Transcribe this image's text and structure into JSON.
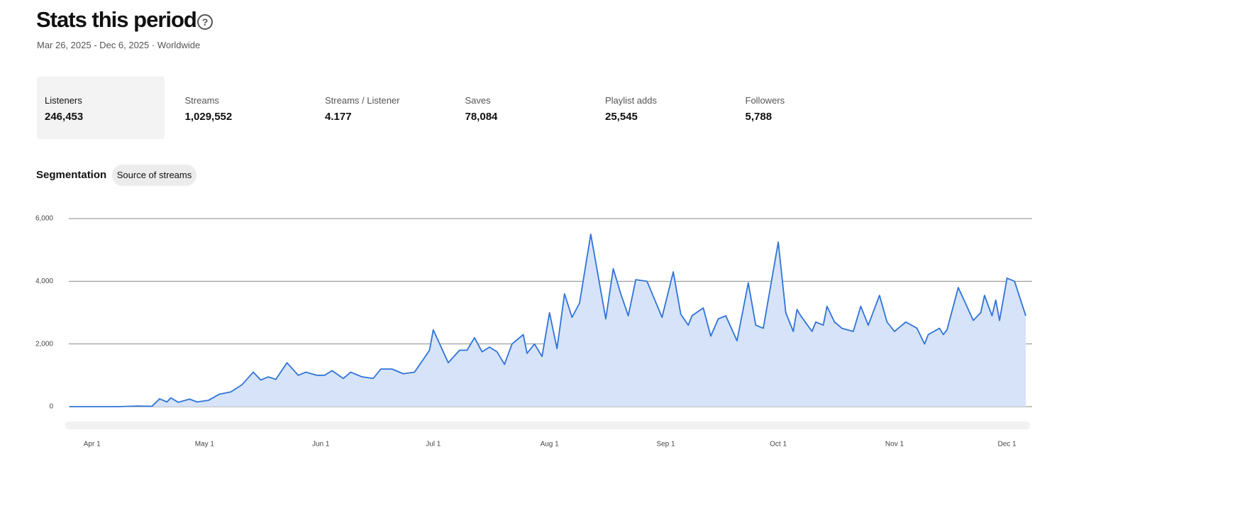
{
  "header": {
    "title": "Stats this period",
    "subtitle": "Mar 26, 2025 - Dec 6, 2025 · Worldwide"
  },
  "stats": [
    {
      "label": "Listeners",
      "value": "246,453"
    },
    {
      "label": "Streams",
      "value": "1,029,552"
    },
    {
      "label": "Streams / Listener",
      "value": "4.177"
    },
    {
      "label": "Saves",
      "value": "78,084"
    },
    {
      "label": "Playlist adds",
      "value": "25,545"
    },
    {
      "label": "Followers",
      "value": "5,788"
    }
  ],
  "segmentation": {
    "label": "Segmentation",
    "option": "Source of streams"
  },
  "chart_data": {
    "type": "area",
    "color": "#2f74d8",
    "fill": "#d6e3f8",
    "grid": true,
    "x": [
      "Mar 26",
      "Apr 1",
      "Apr 8",
      "Apr 13",
      "Apr 17",
      "Apr 19",
      "Apr 21",
      "Apr 22",
      "Apr 24",
      "Apr 27",
      "Apr 29",
      "May 2",
      "May 5",
      "May 8",
      "May 11",
      "May 14",
      "May 16",
      "May 18",
      "May 20",
      "May 23",
      "May 26",
      "May 28",
      "May 31",
      "Jun 2",
      "Jun 4",
      "Jun 7",
      "Jun 9",
      "Jun 12",
      "Jun 15",
      "Jun 17",
      "Jun 20",
      "Jun 23",
      "Jun 26",
      "Jun 28",
      "Jun 30",
      "Jul 1",
      "Jul 5",
      "Jul 8",
      "Jul 10",
      "Jul 12",
      "Jul 14",
      "Jul 16",
      "Jul 18",
      "Jul 20",
      "Jul 22",
      "Jul 25",
      "Jul 26",
      "Jul 28",
      "Jul 30",
      "Aug 1",
      "Aug 3",
      "Aug 5",
      "Aug 7",
      "Aug 9",
      "Aug 12",
      "Aug 16",
      "Aug 18",
      "Aug 20",
      "Aug 22",
      "Aug 24",
      "Aug 27",
      "Aug 31",
      "Sep 3",
      "Sep 5",
      "Sep 7",
      "Sep 8",
      "Sep 11",
      "Sep 13",
      "Sep 15",
      "Sep 17",
      "Sep 20",
      "Sep 23",
      "Sep 25",
      "Sep 27",
      "Oct 1",
      "Oct 3",
      "Oct 5",
      "Oct 6",
      "Oct 7",
      "Oct 10",
      "Oct 11",
      "Oct 13",
      "Oct 14",
      "Oct 16",
      "Oct 18",
      "Oct 21",
      "Oct 23",
      "Oct 25",
      "Oct 28",
      "Oct 30",
      "Nov 1",
      "Nov 4",
      "Nov 7",
      "Nov 9",
      "Nov 10",
      "Nov 13",
      "Nov 14",
      "Nov 15",
      "Nov 18",
      "Nov 22",
      "Nov 24",
      "Nov 25",
      "Nov 27",
      "Nov 28",
      "Nov 29",
      "Dec 1",
      "Dec 3",
      "Dec 6"
    ],
    "series": [
      {
        "name": "Listeners",
        "values": [
          0,
          0,
          0,
          20,
          10,
          250,
          150,
          280,
          140,
          240,
          150,
          200,
          400,
          470,
          700,
          1100,
          850,
          950,
          870,
          1400,
          1000,
          1100,
          1000,
          1000,
          1150,
          900,
          1100,
          950,
          900,
          1200,
          1200,
          1050,
          1100,
          1450,
          1800,
          2450,
          1400,
          1800,
          1800,
          2200,
          1750,
          1900,
          1750,
          1350,
          2000,
          2300,
          1700,
          2000,
          1600,
          3000,
          1850,
          3600,
          2850,
          3300,
          5500,
          2800,
          4400,
          3600,
          2900,
          4050,
          4000,
          2850,
          4300,
          2950,
          2600,
          2900,
          3150,
          2250,
          2800,
          2900,
          2100,
          3950,
          2600,
          2500,
          5250,
          3000,
          2400,
          3100,
          2900,
          2400,
          2700,
          2600,
          3200,
          2700,
          2500,
          2400,
          3200,
          2600,
          3550,
          2700,
          2400,
          2700,
          2500,
          2000,
          2300,
          2500,
          2300,
          2450,
          3800,
          2750,
          3000,
          3550,
          2900,
          3400,
          2750,
          4100,
          4000,
          2900
        ]
      }
    ],
    "xlim": [
      "Mar 26",
      "Dec 6"
    ],
    "xticks": [
      "Apr 1",
      "May 1",
      "Jun 1",
      "Jul 1",
      "Aug 1",
      "Sep 1",
      "Oct 1",
      "Nov 1",
      "Dec 1"
    ],
    "ylim": [
      0,
      6000
    ],
    "yticks": [
      0,
      {
        "value": 2000,
        "label": "2,000"
      },
      {
        "value": 4000,
        "label": "4,000"
      },
      {
        "value": 6000,
        "label": "6,000"
      }
    ]
  }
}
